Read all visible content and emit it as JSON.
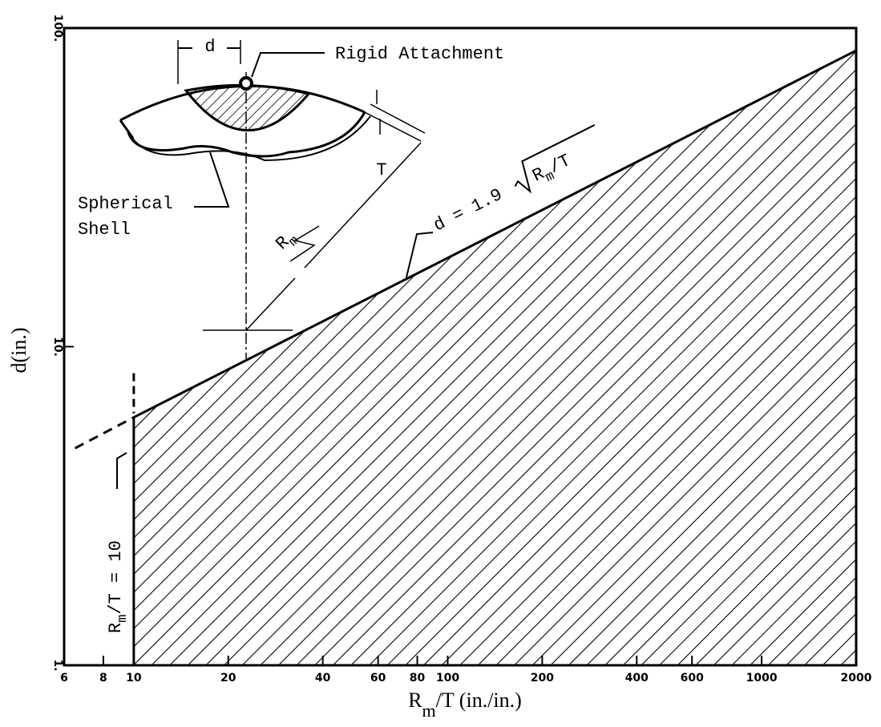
{
  "chart_data": {
    "type": "area",
    "y_label": "d(in.)",
    "x_label": {
      "main": "R",
      "sub": "m",
      "rest": "/T (in./in.)"
    },
    "x": [
      10,
      2000
    ],
    "values": [
      6.0,
      85.0
    ],
    "color": "#000000",
    "extension": {
      "x": [
        6.5,
        10
      ],
      "values": [
        4.8,
        6.0
      ]
    },
    "xlim": [
      6,
      2000
    ],
    "ylim": [
      1,
      100
    ],
    "log_x": true,
    "log_y": true,
    "xticks": [
      6,
      8,
      10,
      20,
      40,
      60,
      80,
      100,
      200,
      400,
      600,
      1000,
      2000
    ],
    "yticks": [
      {
        "value": 1,
        "label": "1."
      },
      {
        "value": 10,
        "label": "10."
      },
      {
        "value": 100,
        "label": "100."
      }
    ],
    "formula": {
      "lhs": "d = 1.9",
      "main": "R",
      "sub": "m",
      "rest": "/T"
    },
    "limit_label": {
      "main": "R",
      "sub": "m",
      "rest": "/T = 10"
    },
    "inset": {
      "attachment": "Rigid Attachment",
      "shell_1": "Spherical",
      "shell_2": "Shell",
      "d": "d",
      "t": "T",
      "r": "R",
      "r_sub": "m"
    }
  }
}
